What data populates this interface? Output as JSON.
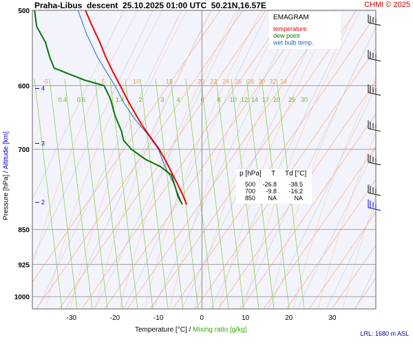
{
  "header": {
    "title": "Praha-Libus  descent  25.10.2025 01:00 UTC  50.21N,16.57E",
    "copyright": "CHMI © 2025"
  },
  "legend": {
    "title": "EMAGRAM",
    "temperature_label": "temperature",
    "dewpoint_label": "dew point",
    "wetbulb_label": "wet bulb temp.",
    "colors": {
      "temperature": "#ee0000",
      "dewpoint": "#007700",
      "wetbulb": "#1a66cc"
    }
  },
  "summary_table": {
    "col_p": "p [hPa]",
    "col_t": "T",
    "col_td": "Td [°C]",
    "rows": [
      {
        "p": "500",
        "t": "-26.8",
        "td": "-38.5"
      },
      {
        "p": "700",
        "t": "-9.8",
        "td": "-16.2"
      },
      {
        "p": "850",
        "t": "NA",
        "td": "NA"
      }
    ]
  },
  "axes": {
    "x_title": "Temperature [°C]",
    "x_sep": "/",
    "x_title2": "Mixing ratio [g/kg]",
    "y_title": "Pressure [hPa]",
    "y_sep": "/",
    "y_title2": "Altitude [km]"
  },
  "footer": {
    "lrl": "LRL: 1680 m ASL"
  },
  "chart_data": {
    "type": "line",
    "y_scale": "log",
    "xlim": [
      -39,
      40
    ],
    "ylim": [
      1030,
      500
    ],
    "x_ticks": [
      -30,
      -20,
      -10,
      0,
      10,
      20,
      30
    ],
    "x_tick_labels": [
      "-30",
      "-20",
      "-10",
      "0",
      "10",
      "20",
      "30"
    ],
    "y_ticks": [
      500,
      600,
      700,
      850,
      925,
      1000
    ],
    "y_tick_labels": [
      "500",
      "600",
      "700",
      "850",
      "925",
      "1000"
    ],
    "altitude_ticks": [
      {
        "p": 604,
        "label": "4"
      },
      {
        "p": 690,
        "label": "3"
      },
      {
        "p": 796,
        "label": "2"
      }
    ],
    "dry_adiabat_labels": [
      "-5",
      "5",
      "10",
      "15",
      "20",
      "22",
      "24",
      "26",
      "28",
      "30",
      "32",
      "34"
    ],
    "mixing_ratio_values": [
      "0.4",
      "0.6",
      "1.4",
      "2",
      "3",
      "4",
      "6",
      "8",
      "10",
      "12",
      "14",
      "17",
      "20",
      "25",
      "30"
    ],
    "mixing_ratio_label_p": 620,
    "temperature": [
      [
        -26.8,
        500
      ],
      [
        -25.2,
        520
      ],
      [
        -23.5,
        540
      ],
      [
        -22.1,
        560
      ],
      [
        -20.5,
        580
      ],
      [
        -18.8,
        600
      ],
      [
        -17.2,
        620
      ],
      [
        -15.5,
        640
      ],
      [
        -13.8,
        660
      ],
      [
        -11.8,
        680
      ],
      [
        -9.8,
        700
      ],
      [
        -8.3,
        720
      ],
      [
        -7.0,
        740
      ],
      [
        -5.7,
        760
      ],
      [
        -4.5,
        780
      ],
      [
        -3.5,
        800
      ]
    ],
    "dewpoint": [
      [
        -38.5,
        500
      ],
      [
        -38.0,
        520
      ],
      [
        -36.0,
        540
      ],
      [
        -35.0,
        560
      ],
      [
        -34.0,
        575
      ],
      [
        -27.0,
        592
      ],
      [
        -22.5,
        600
      ],
      [
        -21.0,
        620
      ],
      [
        -20.0,
        645
      ],
      [
        -18.5,
        670
      ],
      [
        -18.0,
        685
      ],
      [
        -16.2,
        700
      ],
      [
        -13.0,
        717
      ],
      [
        -9.5,
        730
      ],
      [
        -7.0,
        745
      ],
      [
        -6.0,
        770
      ],
      [
        -5.5,
        785
      ],
      [
        -4.5,
        800
      ]
    ],
    "wet_bulb": [
      [
        -28.5,
        500
      ],
      [
        -26.5,
        530
      ],
      [
        -24.0,
        560
      ],
      [
        -22.0,
        580
      ],
      [
        -20.0,
        600
      ],
      [
        -18.0,
        625
      ],
      [
        -15.5,
        650
      ],
      [
        -12.5,
        675
      ],
      [
        -10.0,
        700
      ],
      [
        -8.5,
        730
      ],
      [
        -6.5,
        760
      ],
      [
        -4.5,
        800
      ]
    ],
    "wind_barbs": [
      {
        "p": 510,
        "color": "#000000"
      },
      {
        "p": 556,
        "color": "#000000"
      },
      {
        "p": 604,
        "color": "#000000"
      },
      {
        "p": 659,
        "color": "#000000"
      },
      {
        "p": 715,
        "color": "#000000"
      },
      {
        "p": 770,
        "color": "#000000"
      },
      {
        "p": 798,
        "color": "#0000cc"
      }
    ]
  }
}
